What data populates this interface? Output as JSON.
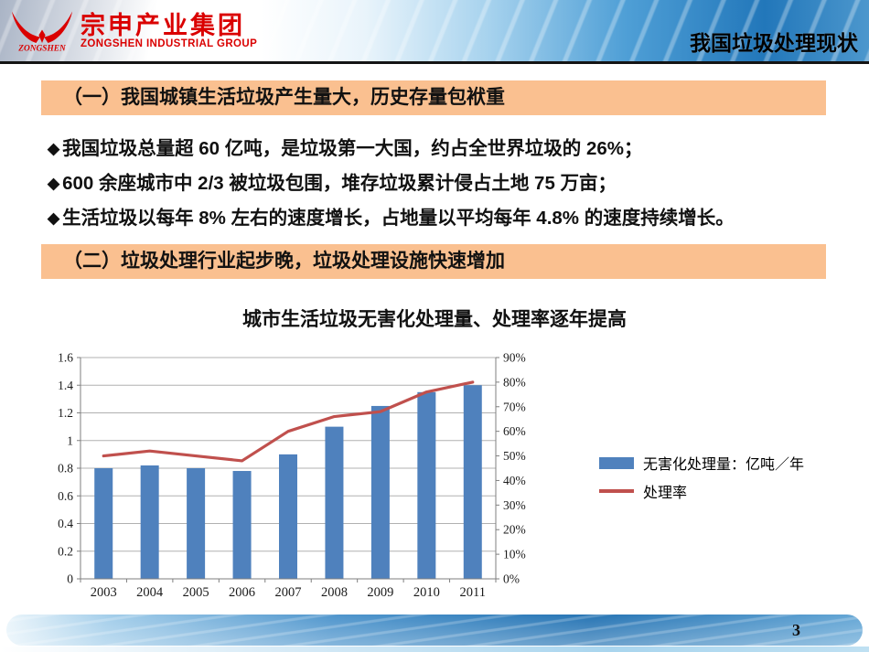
{
  "header": {
    "logo": {
      "brand_cn": "宗申产业集团",
      "brand_en": "ZONGSHEN INDUSTRIAL GROUP",
      "logo_script": "ZONGSHEN"
    },
    "page_title": "我国垃圾处理现状"
  },
  "sections": [
    {
      "heading": "（一）我国城镇生活垃圾产生量大，历史存量包袱重"
    },
    {
      "heading": "（二）垃圾处理行业起步晚，垃圾处理设施快速增加"
    }
  ],
  "bullet_marker": "◆",
  "bullets": [
    "我国垃圾总量超 60 亿吨，是垃圾第一大国，约占全世界垃圾的 26%；",
    "600 余座城市中 2/3 被垃圾包围，堆存垃圾累计侵占土地 75 万亩；",
    "生活垃圾以每年 8% 左右的速度增长，占地量以平均每年 4.8% 的速度持续增长。"
  ],
  "chart_data": {
    "type": "bar",
    "title": "城市生活垃圾无害化处理量、处理率逐年提高",
    "categories": [
      "2003",
      "2004",
      "2005",
      "2006",
      "2007",
      "2008",
      "2009",
      "2010",
      "2011"
    ],
    "series": [
      {
        "name": "无害化处理量：亿吨／年",
        "type": "bar",
        "axis": "left",
        "color": "#4f81bd",
        "values": [
          0.8,
          0.82,
          0.8,
          0.78,
          0.9,
          1.1,
          1.25,
          1.35,
          1.4
        ]
      },
      {
        "name": "处理率",
        "type": "line",
        "axis": "right",
        "color": "#c0504d",
        "values": [
          50,
          52,
          50,
          48,
          60,
          66,
          68,
          76,
          80
        ]
      }
    ],
    "left_axis": {
      "min": 0,
      "max": 1.6,
      "step": 0.2,
      "labels": [
        "0",
        "0.2",
        "0.4",
        "0.6",
        "0.8",
        "1",
        "1.2",
        "1.4",
        "1.6"
      ]
    },
    "right_axis": {
      "min": 0,
      "max": 90,
      "step": 10,
      "labels": [
        "0%",
        "10%",
        "20%",
        "30%",
        "40%",
        "50%",
        "60%",
        "70%",
        "80%",
        "90%"
      ]
    },
    "grid": true,
    "legend_position": "right"
  },
  "footer": {
    "page_number": "3"
  },
  "colors": {
    "banner_bg": "#fac090",
    "bar_blue": "#4f81bd",
    "line_red": "#c0504d",
    "brand_red": "#da0000",
    "grid_gray": "#b0b0b0",
    "axis_gray": "#7f7f7f",
    "text_black": "#111111"
  }
}
